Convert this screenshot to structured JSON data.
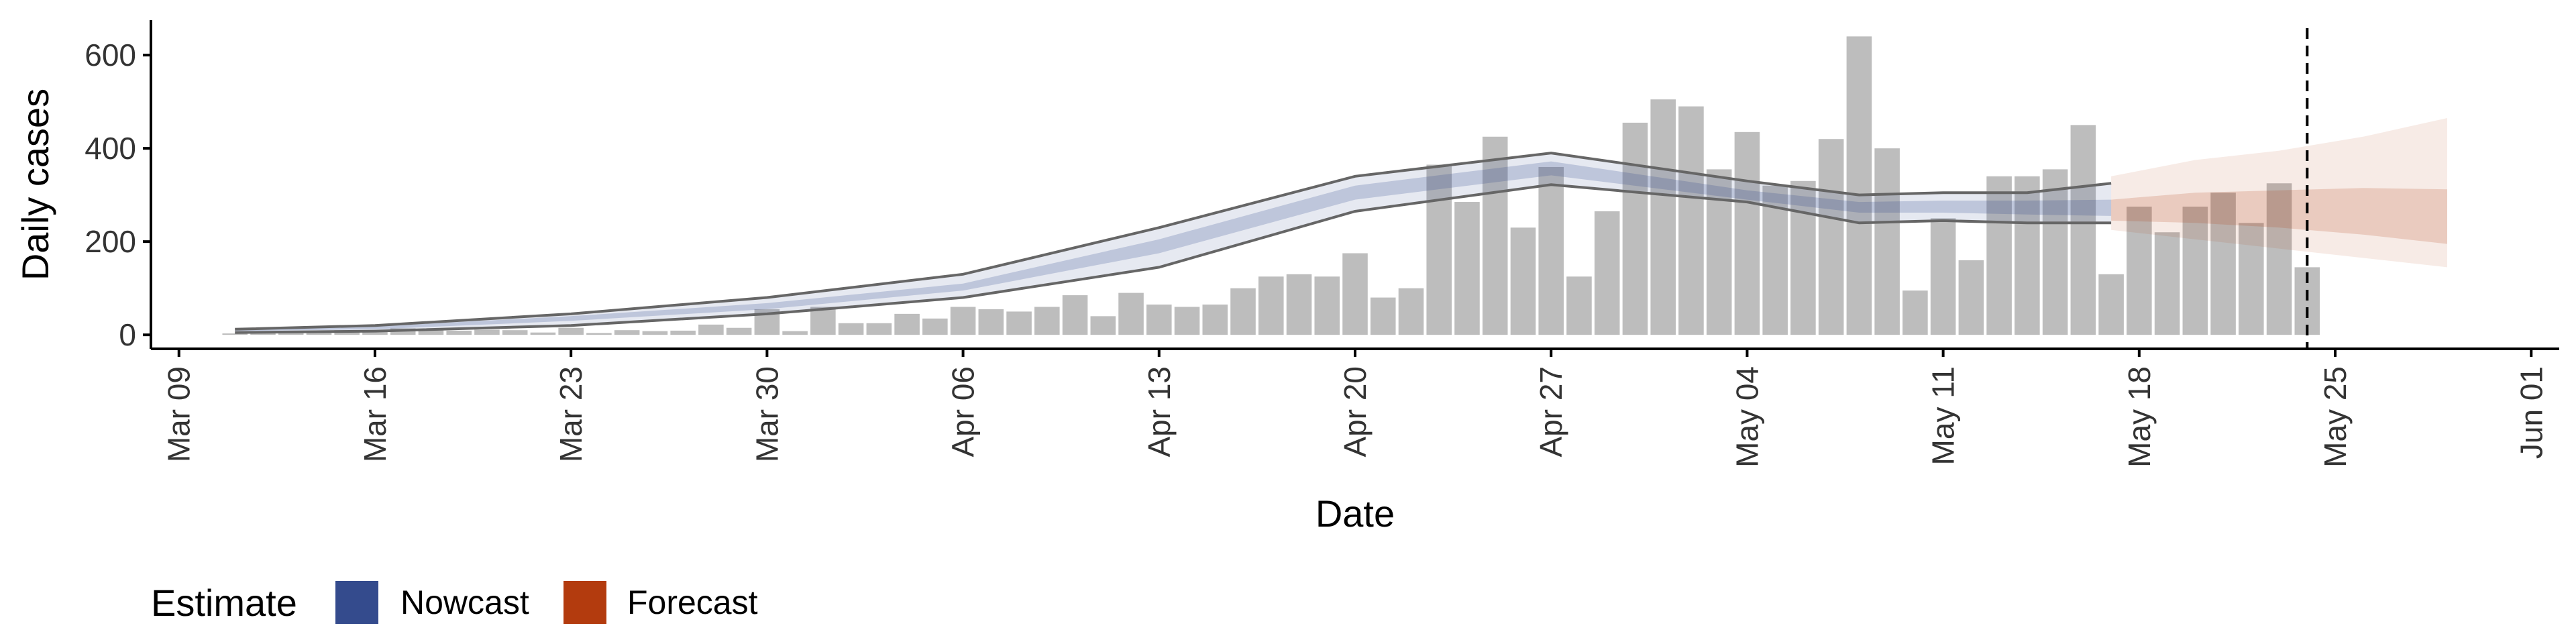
{
  "chart_data": {
    "type": "bar",
    "title": "",
    "xlabel": "Date",
    "ylabel": "Daily cases",
    "ylim": [
      -30,
      675
    ],
    "yticks": [
      0,
      200,
      400,
      600
    ],
    "xlim": [
      "2020-03-08",
      "2020-06-02"
    ],
    "xticks": [
      "Mar 09",
      "Mar 16",
      "Mar 23",
      "Mar 30",
      "Apr 06",
      "Apr 13",
      "Apr 20",
      "Apr 27",
      "May 04",
      "May 11",
      "May 18",
      "May 25",
      "Jun 01"
    ],
    "xtick_dates": [
      "2020-03-09",
      "2020-03-16",
      "2020-03-23",
      "2020-03-30",
      "2020-04-06",
      "2020-04-13",
      "2020-04-20",
      "2020-04-27",
      "2020-05-04",
      "2020-05-11",
      "2020-05-18",
      "2020-05-25",
      "2020-06-01"
    ],
    "grid": false,
    "cases": {
      "start_date": "2020-03-11",
      "values": [
        3,
        5,
        4,
        7,
        10,
        8,
        14,
        12,
        9,
        11,
        10,
        5,
        15,
        4,
        10,
        8,
        9,
        22,
        15,
        55,
        8,
        60,
        25,
        25,
        45,
        35,
        60,
        55,
        50,
        60,
        85,
        40,
        90,
        65,
        60,
        65,
        100,
        125,
        130,
        125,
        175,
        80,
        100,
        365,
        285,
        425,
        230,
        360,
        125,
        265,
        455,
        505,
        490,
        355,
        435,
        320,
        330,
        420,
        640,
        400,
        95,
        250,
        160,
        340,
        340,
        355,
        450,
        130,
        275,
        220,
        275,
        305,
        240,
        325,
        145
      ]
    },
    "nowcast": {
      "name": "Nowcast",
      "color": "#344B8D",
      "x": [
        "2020-03-11",
        "2020-03-16",
        "2020-03-23",
        "2020-03-30",
        "2020-04-06",
        "2020-04-13",
        "2020-04-20",
        "2020-04-27",
        "2020-05-04",
        "2020-05-08",
        "2020-05-11",
        "2020-05-14",
        "2020-05-17"
      ],
      "outer_low": [
        5,
        8,
        20,
        45,
        80,
        145,
        265,
        322,
        285,
        240,
        245,
        240,
        240
      ],
      "inner_low": [
        8,
        12,
        30,
        55,
        95,
        175,
        290,
        342,
        290,
        262,
        262,
        258,
        255
      ],
      "inner_high": [
        12,
        18,
        40,
        68,
        110,
        205,
        320,
        372,
        310,
        285,
        288,
        288,
        290
      ],
      "outer_high": [
        12,
        20,
        45,
        80,
        130,
        230,
        340,
        390,
        330,
        300,
        305,
        305,
        325
      ]
    },
    "forecast": {
      "name": "Forecast",
      "color": "#B33B0E",
      "x": [
        "2020-05-17",
        "2020-05-20",
        "2020-05-23",
        "2020-05-26",
        "2020-05-29"
      ],
      "outer_low": [
        225,
        205,
        185,
        165,
        145
      ],
      "inner_low": [
        245,
        240,
        230,
        215,
        195
      ],
      "inner_high": [
        290,
        305,
        310,
        315,
        312
      ],
      "outer_high": [
        340,
        375,
        395,
        425,
        465
      ]
    },
    "vline_date": "2020-05-24",
    "legend": {
      "position": "bottom-left",
      "title": "Estimate",
      "entries": [
        {
          "label": "Nowcast",
          "color": "#344B8D"
        },
        {
          "label": "Forecast",
          "color": "#B33B0E"
        }
      ]
    }
  }
}
